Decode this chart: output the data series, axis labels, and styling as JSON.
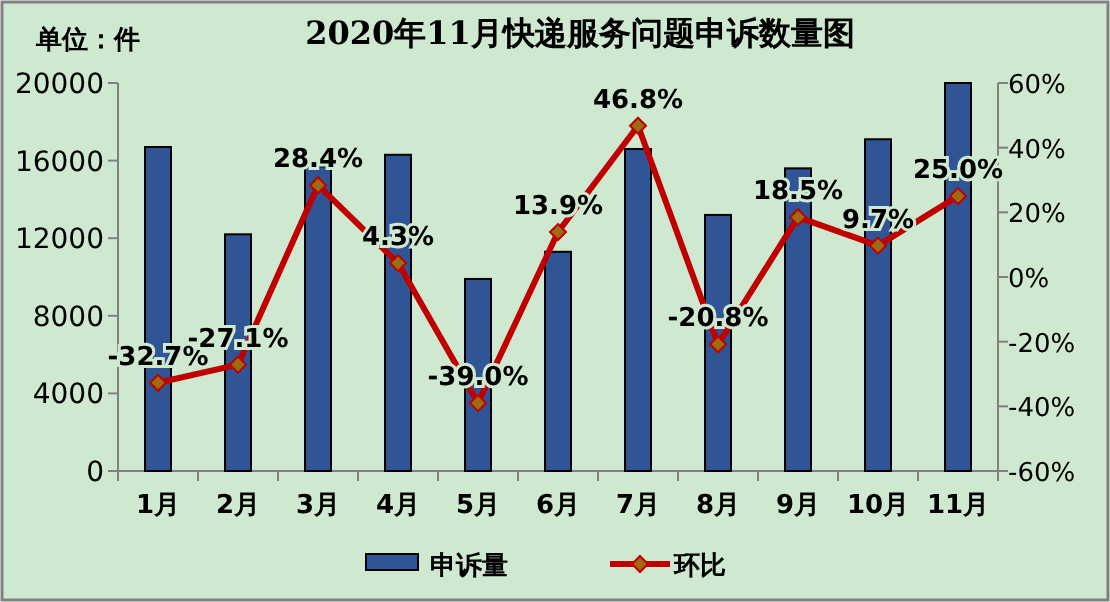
{
  "chart_data": {
    "type": "bar",
    "title": "2020年11月快递服务问题申诉数量图",
    "annotations": [
      "单位：件"
    ],
    "categories": [
      "1月",
      "2月",
      "3月",
      "4月",
      "5月",
      "6月",
      "7月",
      "8月",
      "9月",
      "10月",
      "11月"
    ],
    "series": [
      {
        "name": "申诉量",
        "color": "#2f5597",
        "values": [
          16700,
          12200,
          15700,
          16300,
          9900,
          11300,
          16600,
          13200,
          15600,
          17100,
          20000
        ]
      },
      {
        "name": "环比",
        "type": "line",
        "axis": "y2",
        "color": "#c00000",
        "marker": "diamond",
        "values": [
          -32.7,
          -27.1,
          28.4,
          4.3,
          -39.0,
          13.9,
          46.8,
          -20.8,
          18.5,
          9.7,
          25.0
        ],
        "value_labels": [
          "-32.7%",
          "-27.1%",
          "28.4%",
          "4.3%",
          "-39.0%",
          "13.9%",
          "46.8%",
          "-20.8%",
          "18.5%",
          "9.7%",
          "25.0%"
        ]
      }
    ],
    "ylim": [
      0,
      20000
    ],
    "yticks": [
      0,
      4000,
      8000,
      12000,
      16000,
      20000
    ],
    "y2lim": [
      -60,
      60
    ],
    "y2ticks": [
      {
        "value": -60,
        "label": "-60%"
      },
      {
        "value": -40,
        "label": "-40%"
      },
      {
        "value": -20,
        "label": "-20%"
      },
      {
        "value": 0,
        "label": "0%"
      },
      {
        "value": 20,
        "label": "20%"
      },
      {
        "value": 40,
        "label": "40%"
      },
      {
        "value": 60,
        "label": "60%"
      }
    ],
    "legend": "bottom",
    "grid": false
  }
}
